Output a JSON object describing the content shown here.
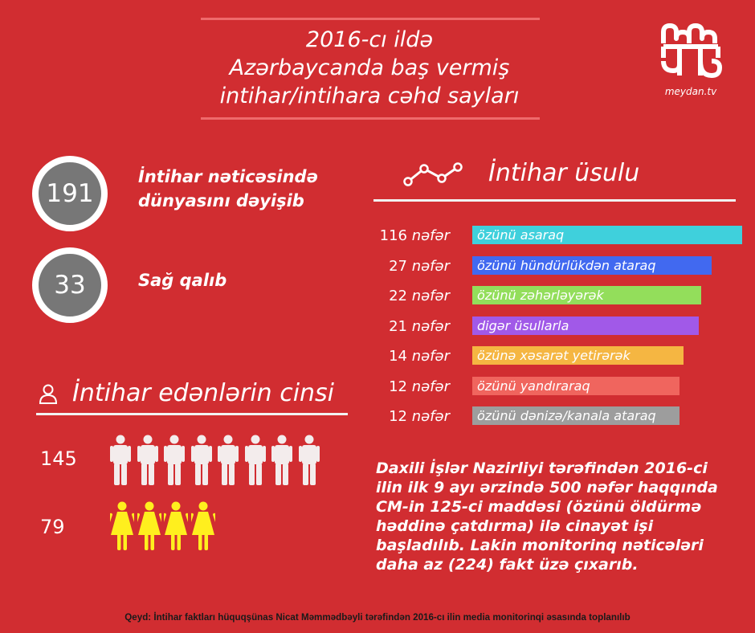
{
  "header": {
    "title_lines": [
      "2016-cı ildə",
      "Azərbaycanda baş vermiş",
      "intihar/intihara cəhd sayları"
    ]
  },
  "logo": {
    "text": "meydan.tv",
    "icon": "meydan-logo-icon"
  },
  "stats": [
    {
      "value": "191",
      "label_lines": [
        "İntihar nəticəsində",
        "dünyasını dəyişib"
      ]
    },
    {
      "value": "33",
      "label_lines": [
        "Sağ qalıb"
      ]
    }
  ],
  "methods_section": {
    "title": "İntihar üsulu",
    "icon": "line-chart-icon",
    "unit": "nəfər"
  },
  "gender_section": {
    "title": "İntihar edənlərin cinsi",
    "icon": "person-icon"
  },
  "chart_data": [
    {
      "type": "bar",
      "title": "İntihar üsulu",
      "categories": [
        "özünü asaraq",
        "özünü hündürlükdən ataraq",
        "özünü zəhərləyərək",
        "digər üsullarla",
        "özünə xəsarət yetirərək",
        "özünü yandıraraq",
        "özünü dənizə/kanala ataraq"
      ],
      "values": [
        116,
        27,
        22,
        21,
        14,
        12,
        12
      ],
      "colors": [
        "#3fd0dc",
        "#4169f0",
        "#93de5b",
        "#a159e8",
        "#f5b642",
        "#f0655e",
        "#9d9d9d"
      ]
    },
    {
      "type": "bar",
      "title": "İntihar edənlərin cinsi",
      "categories": [
        "male",
        "female"
      ],
      "values": [
        145,
        79
      ],
      "colors": [
        "#f3ecec",
        "#ffef1e"
      ]
    }
  ],
  "gender_rows": [
    {
      "count": "145",
      "icon": "male-figure-icon",
      "icon_count": 8,
      "color": "#f3ecec"
    },
    {
      "count": "79",
      "icon": "female-figure-icon",
      "icon_count": 4,
      "color": "#ffef1e"
    }
  ],
  "note_lines": [
    "Daxili İşlər Nazirliyi tərəfindən 2016-ci",
    "ilin ilk 9 ayı ərzində 500 nəfər haqqında",
    "CM-in 125-ci maddəsi (özünü öldürmə",
    "həddinə çatdırma) ilə cinayət işi",
    "başladılıb. Lakin monitorinq nəticələri",
    "daha az (224) fakt üzə çıxarıb."
  ],
  "footer": "Qeyd: İntihar faktları hüquqşünas Nicat Məmmədbəyli tərəfindən 2016-cı ilin media monitorinqi əsasında toplanılıb"
}
